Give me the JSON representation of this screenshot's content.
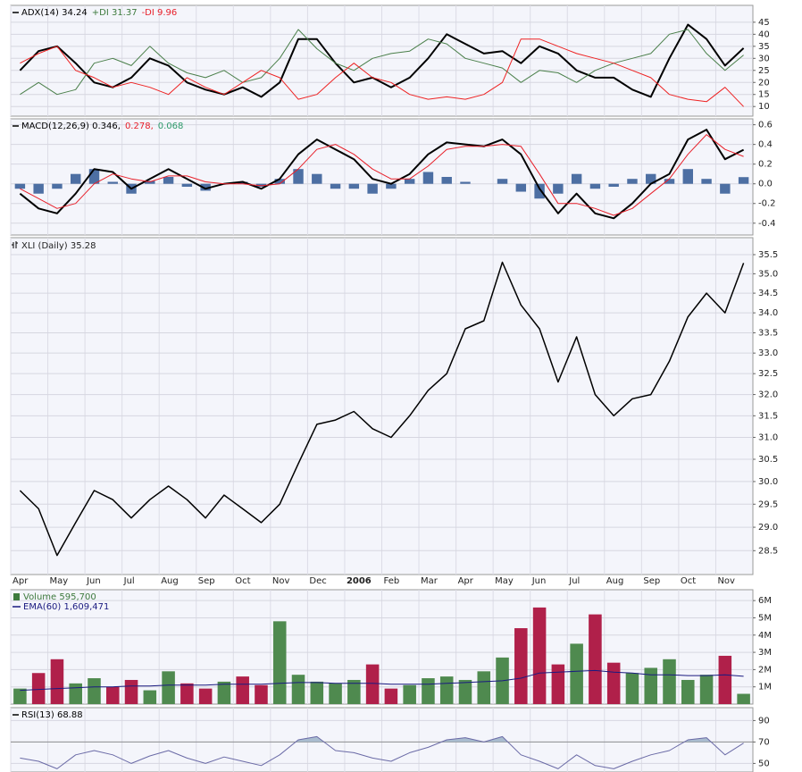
{
  "chart_data": [
    {
      "type": "line",
      "legend": [
        {
          "label": "ADX(14) 34.24",
          "color": "#000000"
        },
        {
          "label": "+DI 31.37",
          "color": "#3d7a3d"
        },
        {
          "label": "-DI 9.96",
          "color": "#e8202a"
        }
      ],
      "series": [
        {
          "color": "#000000",
          "width": 2,
          "values": [
            25,
            33,
            35,
            28,
            20,
            18,
            22,
            30,
            27,
            20,
            17,
            15,
            18,
            14,
            20,
            38,
            38,
            28,
            20,
            22,
            18,
            22,
            30,
            40,
            36,
            32,
            33,
            28,
            35,
            32,
            25,
            22,
            22,
            17,
            14,
            30,
            44,
            38,
            27,
            34.24
          ]
        },
        {
          "color": "#4a7f4a",
          "width": 1,
          "values": [
            15,
            20,
            15,
            17,
            28,
            30,
            27,
            35,
            28,
            24,
            22,
            25,
            20,
            22,
            30,
            42,
            34,
            28,
            25,
            30,
            32,
            33,
            38,
            36,
            30,
            28,
            26,
            20,
            25,
            24,
            20,
            25,
            28,
            30,
            32,
            40,
            42,
            32,
            25,
            31.37
          ]
        },
        {
          "color": "#ee2222",
          "width": 1,
          "values": [
            28,
            32,
            35,
            25,
            22,
            18,
            20,
            18,
            15,
            22,
            18,
            15,
            20,
            25,
            22,
            13,
            15,
            22,
            28,
            22,
            20,
            15,
            13,
            14,
            13,
            15,
            20,
            38,
            38,
            35,
            32,
            30,
            28,
            25,
            22,
            15,
            13,
            12,
            18,
            9.96
          ]
        }
      ],
      "ylim": [
        6,
        52
      ],
      "yticks": [
        10,
        15,
        20,
        25,
        30,
        35,
        40,
        45
      ],
      "grid": true
    },
    {
      "type": "combo",
      "legend": [
        {
          "label": "MACD(12,26,9) 0.346,",
          "color": "#000000"
        },
        {
          "label": "0.278,",
          "color": "#e8202a"
        },
        {
          "label": "0.068",
          "color": "#2e9a6a"
        }
      ],
      "series": [
        {
          "type": "bar",
          "color": "#4d6fa3",
          "values": [
            -0.05,
            -0.1,
            -0.05,
            0.1,
            0.15,
            0.02,
            -0.1,
            0.03,
            0.07,
            -0.03,
            -0.07,
            0.0,
            0.02,
            -0.03,
            0.05,
            0.15,
            0.1,
            -0.05,
            -0.05,
            -0.1,
            -0.05,
            0.05,
            0.12,
            0.07,
            0.02,
            0.0,
            0.05,
            -0.08,
            -0.15,
            -0.1,
            0.1,
            -0.05,
            -0.03,
            0.05,
            0.1,
            0.05,
            0.15,
            0.05,
            -0.1,
            0.068
          ]
        },
        {
          "type": "line",
          "color": "#000000",
          "width": 2,
          "values": [
            -0.1,
            -0.25,
            -0.3,
            -0.1,
            0.15,
            0.12,
            -0.05,
            0.05,
            0.15,
            0.05,
            -0.05,
            0.0,
            0.02,
            -0.05,
            0.05,
            0.3,
            0.45,
            0.35,
            0.25,
            0.05,
            0.0,
            0.1,
            0.3,
            0.42,
            0.4,
            0.38,
            0.45,
            0.3,
            -0.05,
            -0.3,
            -0.1,
            -0.3,
            -0.35,
            -0.2,
            0.0,
            0.1,
            0.45,
            0.55,
            0.25,
            0.346
          ]
        },
        {
          "type": "line",
          "color": "#e8202a",
          "width": 1,
          "values": [
            -0.05,
            -0.15,
            -0.25,
            -0.2,
            0.0,
            0.1,
            0.05,
            0.02,
            0.08,
            0.08,
            0.02,
            0.0,
            0.0,
            -0.02,
            0.0,
            0.15,
            0.35,
            0.4,
            0.3,
            0.15,
            0.05,
            0.05,
            0.18,
            0.35,
            0.38,
            0.38,
            0.4,
            0.38,
            0.1,
            -0.2,
            -0.2,
            -0.25,
            -0.32,
            -0.25,
            -0.1,
            0.05,
            0.3,
            0.5,
            0.35,
            0.278
          ]
        }
      ],
      "ylim": [
        -0.52,
        0.66
      ],
      "yticks": [
        -0.4,
        -0.2,
        {
          "value": 0,
          "label": "0.0"
        },
        0.2,
        0.4,
        0.6
      ],
      "grid": true
    },
    {
      "type": "line",
      "title": "XLI (Daily) 35.28",
      "log_scale": true,
      "categories": [
        "Apr",
        null,
        "May",
        null,
        "Jun",
        null,
        "Jul",
        null,
        "Aug",
        null,
        "Sep",
        null,
        "Oct",
        null,
        "Nov",
        null,
        "Dec",
        null,
        "2006",
        null,
        "Feb",
        null,
        "Mar",
        null,
        "Apr",
        null,
        "May",
        null,
        "Jun",
        null,
        "Jul",
        null,
        "Aug",
        null,
        "Sep",
        null,
        "Oct",
        null,
        "Nov",
        null
      ],
      "series": [
        {
          "color": "#000000",
          "width": 1.5,
          "values": [
            29.8,
            29.4,
            28.4,
            29.1,
            29.8,
            29.6,
            29.2,
            29.6,
            29.9,
            29.6,
            29.2,
            29.7,
            29.4,
            29.1,
            29.5,
            30.4,
            31.3,
            31.4,
            31.6,
            31.2,
            31.0,
            31.5,
            32.1,
            32.5,
            33.6,
            33.8,
            35.3,
            34.2,
            33.6,
            32.3,
            33.4,
            32.0,
            31.5,
            31.9,
            32.0,
            32.8,
            33.9,
            34.5,
            34.0,
            35.28
          ]
        }
      ],
      "ylim": [
        28,
        35.95
      ],
      "yticks": [
        28.5,
        {
          "value": 29,
          "label": "29.0"
        },
        29.5,
        {
          "value": 30,
          "label": "30.0"
        },
        30.5,
        {
          "value": 31,
          "label": "31.0"
        },
        31.5,
        {
          "value": 32,
          "label": "32.0"
        },
        32.5,
        {
          "value": 33,
          "label": "33.0"
        },
        33.5,
        {
          "value": 34,
          "label": "34.0"
        },
        34.5,
        {
          "value": 35,
          "label": "35.0"
        },
        35.5
      ],
      "grid": true
    },
    {
      "type": "combo",
      "legend": [
        {
          "label": "Volume 595,700",
          "color": "#3d7a3d"
        },
        {
          "label": "EMA(60) 1,609,471",
          "color": "#1a1a80"
        }
      ],
      "series": [
        {
          "type": "bar",
          "up_color": "#4f8a4f",
          "down_color": "#b0204a",
          "values": [
            900000,
            1800000,
            2600000,
            1200000,
            1500000,
            1000000,
            1400000,
            800000,
            1900000,
            1200000,
            900000,
            1300000,
            1600000,
            1100000,
            4800000,
            1700000,
            1300000,
            1200000,
            1400000,
            2300000,
            900000,
            1100000,
            1500000,
            1600000,
            1400000,
            1900000,
            2700000,
            4400000,
            5600000,
            2300000,
            3500000,
            5200000,
            2400000,
            1800000,
            2100000,
            2600000,
            1400000,
            1700000,
            2800000,
            595700
          ]
        },
        {
          "type": "line",
          "color": "#1a1a80",
          "width": 1,
          "values": [
            800000,
            850000,
            900000,
            950000,
            1000000,
            1000000,
            1050000,
            1050000,
            1100000,
            1100000,
            1100000,
            1150000,
            1150000,
            1150000,
            1200000,
            1250000,
            1250000,
            1200000,
            1200000,
            1200000,
            1150000,
            1150000,
            1150000,
            1200000,
            1250000,
            1300000,
            1350000,
            1500000,
            1800000,
            1850000,
            1900000,
            1950000,
            1850000,
            1800000,
            1700000,
            1700000,
            1650000,
            1650000,
            1700000,
            1609471
          ]
        }
      ],
      "ylim": [
        0,
        6630000
      ],
      "yticks": [
        {
          "value": 1000000,
          "label": "1M"
        },
        {
          "value": 2000000,
          "label": "2M"
        },
        {
          "value": 3000000,
          "label": "3M"
        },
        {
          "value": 4000000,
          "label": "4M"
        },
        {
          "value": 5000000,
          "label": "5M"
        },
        {
          "value": 6000000,
          "label": "6M"
        }
      ],
      "grid": true
    },
    {
      "type": "line",
      "legend": [
        {
          "label": "RSI(13) 68.88",
          "color": "#000000"
        }
      ],
      "series": [
        {
          "color": "#6a6aa6",
          "width": 1,
          "values": [
            55,
            52,
            45,
            58,
            62,
            58,
            50,
            57,
            62,
            55,
            50,
            56,
            52,
            48,
            58,
            72,
            75,
            62,
            60,
            55,
            52,
            60,
            65,
            72,
            74,
            70,
            75,
            58,
            52,
            45,
            58,
            48,
            45,
            52,
            58,
            62,
            72,
            74,
            58,
            68.88
          ]
        }
      ],
      "shade_above": 70,
      "shade_color": "#a9bccf",
      "ylim": [
        42,
        102
      ],
      "yticks": [
        50,
        70,
        90
      ],
      "grid": true
    }
  ]
}
